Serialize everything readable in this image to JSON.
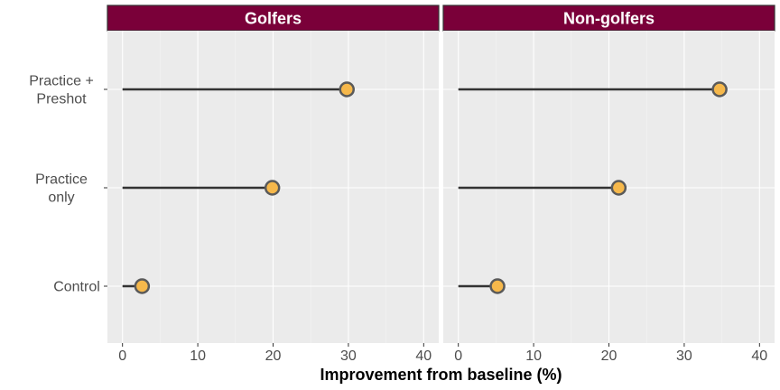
{
  "chart_data": {
    "type": "lollipop",
    "xlabel": "Improvement from baseline (%)",
    "xlim": [
      -2,
      42
    ],
    "xticks": [
      0,
      10,
      20,
      30,
      40
    ],
    "categories": [
      "Practice +\nPreshot",
      "Practice\nonly",
      "Control"
    ],
    "panels": [
      {
        "name": "Golfers",
        "values": [
          29.8,
          19.9,
          2.6
        ]
      },
      {
        "name": "Non-golfers",
        "values": [
          34.7,
          21.3,
          5.2
        ]
      }
    ],
    "grid": true,
    "colors": {
      "strip": "#7a0039",
      "panel_bg": "#ebebeb",
      "point_fill": "#f6b84b",
      "point_stroke": "#5a5a5a",
      "segment": "#333333"
    }
  }
}
